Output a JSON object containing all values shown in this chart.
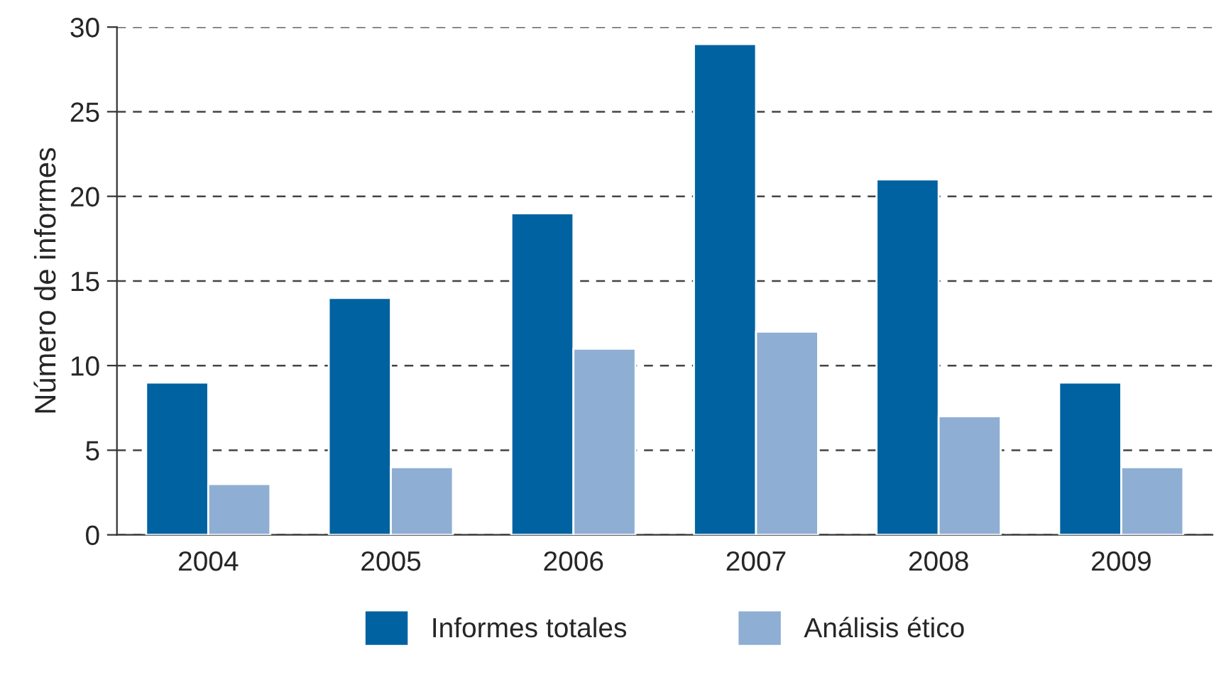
{
  "chart_data": {
    "type": "bar",
    "ylabel": "Número de informes",
    "categories": [
      "2004",
      "2005",
      "2006",
      "2007",
      "2008",
      "2009"
    ],
    "series": [
      {
        "name": "Informes totales",
        "color": "#0062a0",
        "values": [
          9,
          14,
          19,
          29,
          21,
          9
        ]
      },
      {
        "name": "Análisis ético",
        "color": "#8eaed4",
        "values": [
          3,
          4,
          11,
          12,
          7,
          4
        ]
      }
    ],
    "ylim": [
      0,
      30
    ],
    "yticks": [
      0,
      5,
      10,
      15,
      20,
      25,
      30
    ],
    "grid": "y",
    "legend": "bottom"
  }
}
